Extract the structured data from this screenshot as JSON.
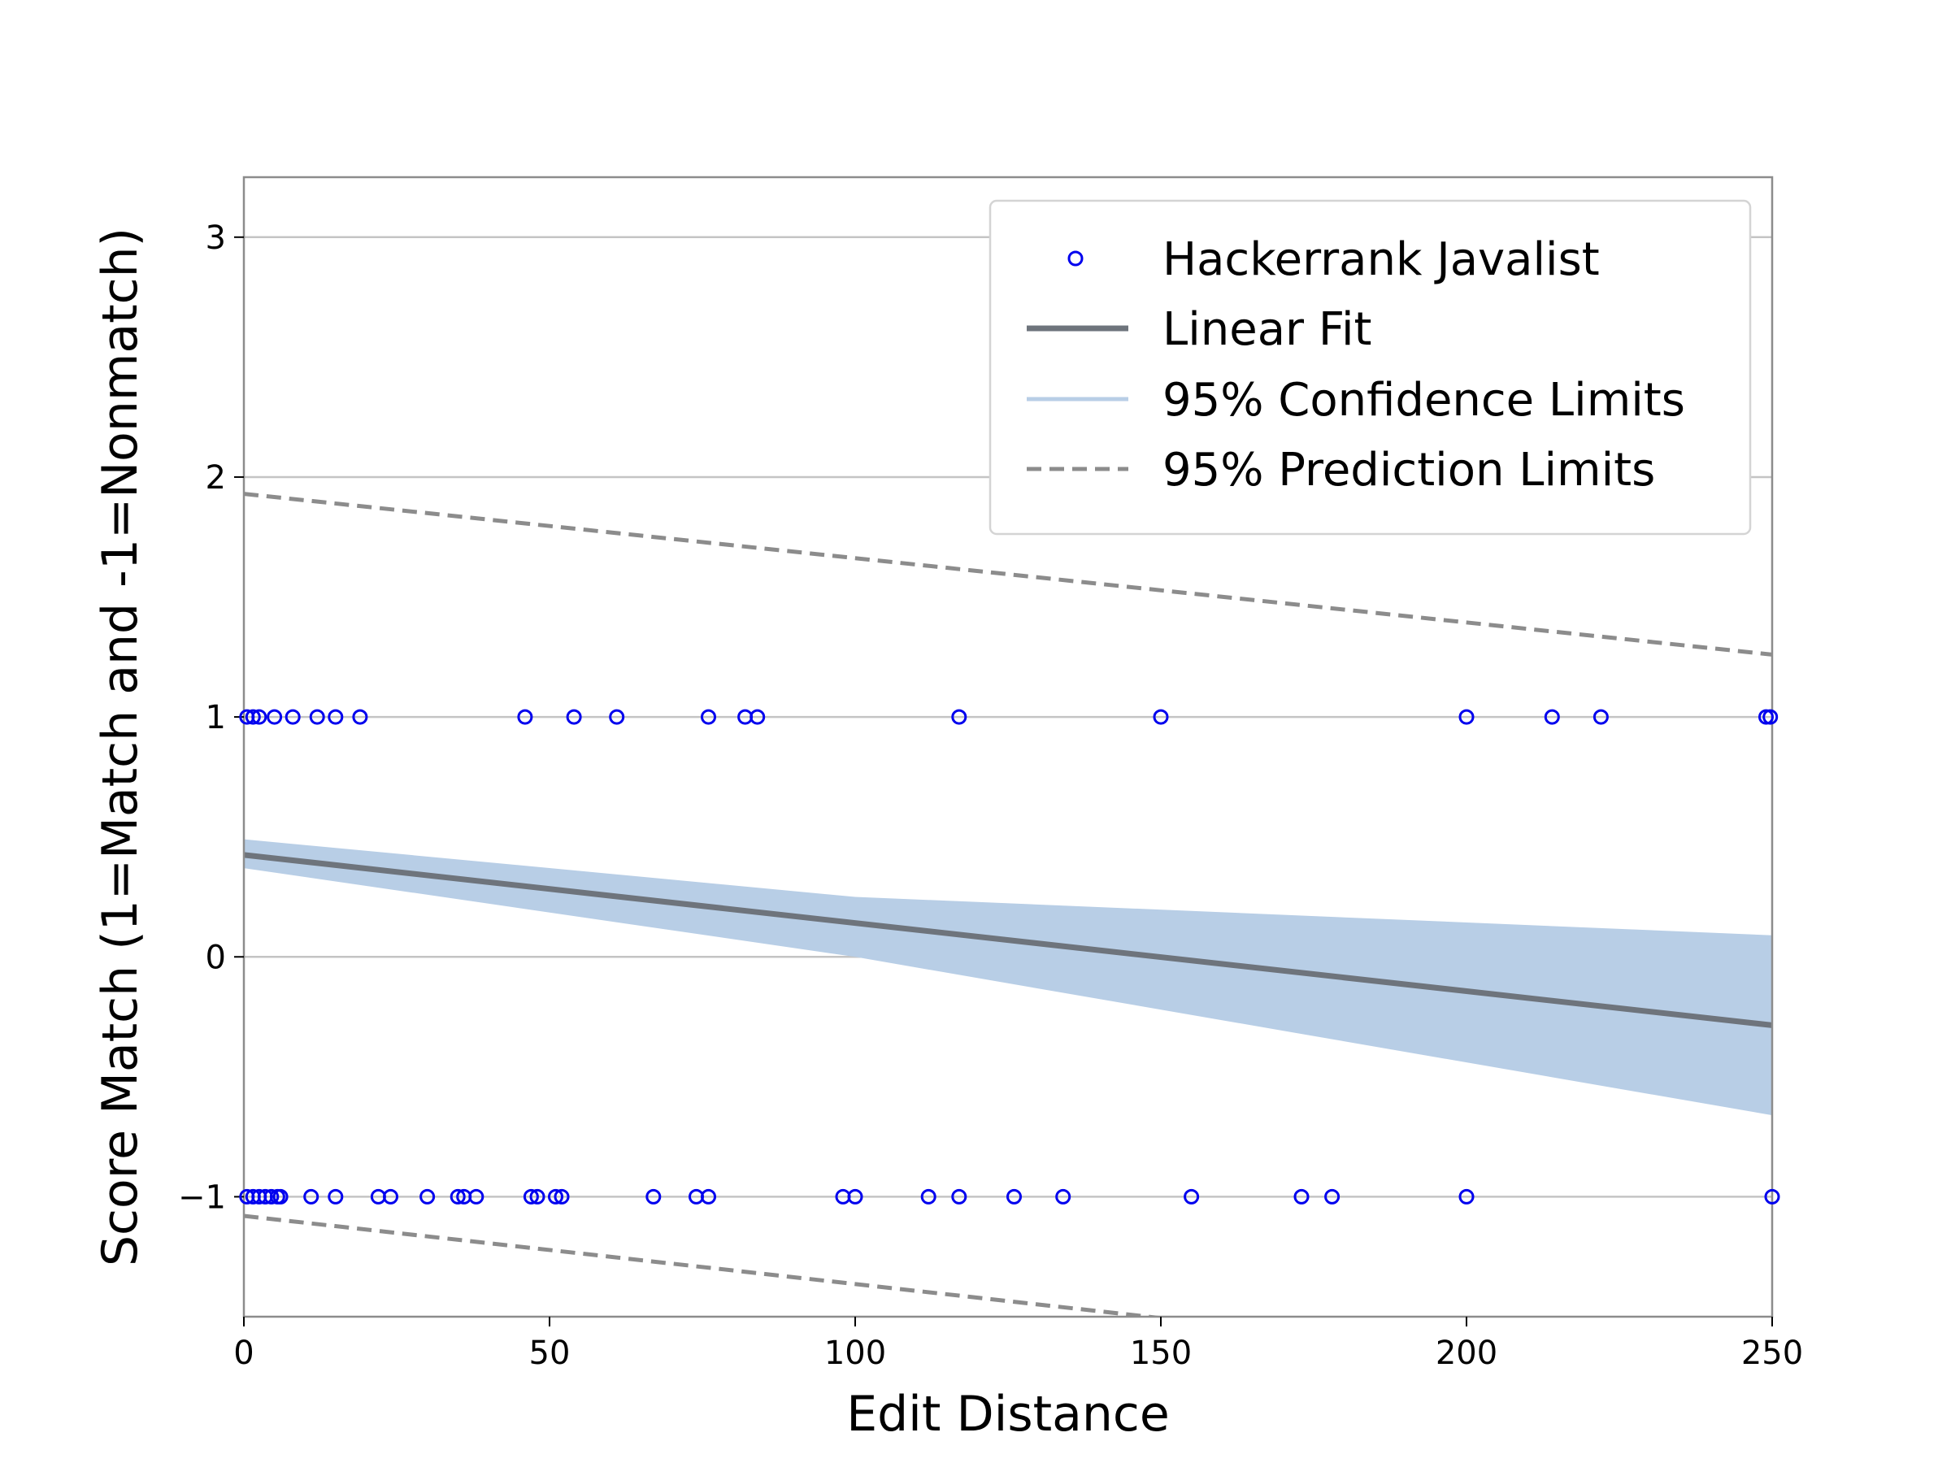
{
  "chart_data": {
    "type": "scatter",
    "xlabel": "Edit Distance",
    "ylabel": "Score Match (1=Match and -1=Nonmatch)",
    "xlim": [
      0,
      250
    ],
    "ylim": [
      -1.5,
      3.25
    ],
    "xticks": [
      {
        "value": 0,
        "label": "0"
      },
      {
        "value": 50,
        "label": "50"
      },
      {
        "value": 100,
        "label": "100"
      },
      {
        "value": 150,
        "label": "150"
      },
      {
        "value": 200,
        "label": "200"
      },
      {
        "value": 250,
        "label": "250"
      }
    ],
    "yticks": [
      {
        "value": -1,
        "label": "−1"
      },
      {
        "value": 0,
        "label": "0"
      },
      {
        "value": 1,
        "label": "1"
      },
      {
        "value": 2,
        "label": "2"
      },
      {
        "value": 3,
        "label": "3"
      }
    ],
    "grid": "horizontal",
    "legend_position": "top-right",
    "series": [
      {
        "name": "Hackerrank Javalist",
        "kind": "scatter",
        "color": "#0000ee",
        "points": [
          [
            0.5,
            1
          ],
          [
            1.5,
            1
          ],
          [
            2.5,
            1
          ],
          [
            5,
            1
          ],
          [
            8,
            1
          ],
          [
            12,
            1
          ],
          [
            15,
            1
          ],
          [
            19,
            1
          ],
          [
            46,
            1
          ],
          [
            54,
            1
          ],
          [
            61,
            1
          ],
          [
            76,
            1
          ],
          [
            82,
            1
          ],
          [
            84,
            1
          ],
          [
            117,
            1
          ],
          [
            150,
            1
          ],
          [
            200,
            1
          ],
          [
            214,
            1
          ],
          [
            222,
            1
          ],
          [
            249,
            1
          ],
          [
            249.7,
            1
          ],
          [
            0.5,
            -1
          ],
          [
            1.5,
            -1
          ],
          [
            2.5,
            -1
          ],
          [
            3.5,
            -1
          ],
          [
            4.5,
            -1
          ],
          [
            5.5,
            -1
          ],
          [
            6,
            -1
          ],
          [
            11,
            -1
          ],
          [
            15,
            -1
          ],
          [
            22,
            -1
          ],
          [
            24,
            -1
          ],
          [
            30,
            -1
          ],
          [
            35,
            -1
          ],
          [
            36,
            -1
          ],
          [
            38,
            -1
          ],
          [
            47,
            -1
          ],
          [
            48,
            -1
          ],
          [
            51,
            -1
          ],
          [
            52,
            -1
          ],
          [
            67,
            -1
          ],
          [
            74,
            -1
          ],
          [
            76,
            -1
          ],
          [
            98,
            -1
          ],
          [
            100,
            -1
          ],
          [
            112,
            -1
          ],
          [
            117,
            -1
          ],
          [
            126,
            -1
          ],
          [
            134,
            -1
          ],
          [
            155,
            -1
          ],
          [
            173,
            -1
          ],
          [
            178,
            -1
          ],
          [
            200,
            -1
          ],
          [
            250,
            -1
          ]
        ]
      },
      {
        "name": "Linear Fit",
        "kind": "line",
        "color": "#6e747c",
        "points": [
          [
            0,
            0.425
          ],
          [
            250,
            -0.285
          ]
        ]
      },
      {
        "name": "95% Confidence Limits",
        "kind": "band",
        "color": "#b8cee6",
        "upper": [
          [
            0,
            0.49
          ],
          [
            100,
            0.25
          ],
          [
            250,
            0.09
          ]
        ],
        "lower": [
          [
            0,
            0.37
          ],
          [
            100,
            0.0
          ],
          [
            250,
            -0.66
          ]
        ]
      },
      {
        "name": "95% Prediction Limits",
        "kind": "dashed",
        "color": "#8c8c8c",
        "upper": [
          [
            0,
            1.93
          ],
          [
            250,
            1.26
          ]
        ],
        "lower": [
          [
            0,
            -1.08
          ],
          [
            250,
            -1.79
          ]
        ]
      }
    ]
  }
}
